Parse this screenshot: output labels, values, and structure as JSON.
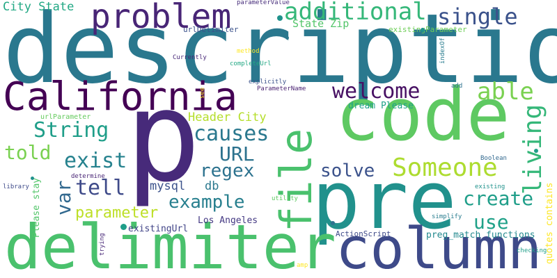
{
  "words": [
    {
      "text": "description",
      "color": "#2a788e"
    },
    {
      "text": "p",
      "color": "#472a7a"
    },
    {
      "text": "code",
      "color": "#5ec962"
    },
    {
      "text": "pre",
      "color": "#21918c"
    },
    {
      "text": "delimiter",
      "color": "#4ac16d"
    },
    {
      "text": "column",
      "color": "#3e4a89"
    },
    {
      "text": "California",
      "color": "#440154"
    },
    {
      "text": "file",
      "color": "#4ac16d"
    },
    {
      "text": "problem",
      "color": "#482576"
    },
    {
      "text": "additional",
      "color": "#35b779"
    },
    {
      "text": "single",
      "color": "#3b528b"
    },
    {
      "text": "Someone",
      "color": "#addc30"
    },
    {
      "text": "welcome",
      "color": "#471063"
    },
    {
      "text": "able",
      "color": "#7ad151"
    },
    {
      "text": "String",
      "color": "#1f9e89"
    },
    {
      "text": "causes",
      "color": "#2a788e"
    },
    {
      "text": "living",
      "color": "#35b779"
    },
    {
      "text": "exist",
      "color": "#26828e"
    },
    {
      "text": "told",
      "color": "#7ad151"
    },
    {
      "text": "tell",
      "color": "#3e4a89"
    },
    {
      "text": "var",
      "color": "#31688e"
    },
    {
      "text": "URL",
      "color": "#2c728e"
    },
    {
      "text": "regex",
      "color": "#2c728e"
    },
    {
      "text": "solve",
      "color": "#3b528b"
    },
    {
      "text": "create",
      "color": "#1f9e89"
    },
    {
      "text": "example",
      "color": "#277f8e"
    },
    {
      "text": "use",
      "color": "#1fa188"
    },
    {
      "text": "parameter",
      "color": "#bddf26"
    },
    {
      "text": "mysql",
      "color": "#3b528b"
    },
    {
      "text": "db",
      "color": "#2a788e"
    },
    {
      "text": "Header City",
      "color": "#b5de2b"
    },
    {
      "text": "City State",
      "color": "#22a884"
    },
    {
      "text": "State Zip",
      "color": "#52c569"
    },
    {
      "text": "dream Please",
      "color": "#1fa188"
    },
    {
      "text": "Los Angeles",
      "color": "#443983"
    },
    {
      "text": "preg_match functions",
      "color": "#23898e"
    },
    {
      "text": "existingUrl",
      "color": "#414487"
    },
    {
      "text": "Please stay",
      "color": "#52c569"
    },
    {
      "text": "quotes contains",
      "color": "#fde725"
    },
    {
      "text": "ActionScript",
      "color": "#3e4a89"
    },
    {
      "text": "urlDelimiter",
      "color": "#3b528b"
    },
    {
      "text": "existingParameter",
      "color": "#6ece58"
    },
    {
      "text": "parameterValue",
      "color": "#472d7b"
    },
    {
      "text": "urlParameter",
      "color": "#65cb5e"
    },
    {
      "text": "Currently",
      "color": "#482878"
    },
    {
      "text": "completeUrl",
      "color": "#22a884"
    },
    {
      "text": "method",
      "color": "#fde725"
    },
    {
      "text": "explicitly",
      "color": "#3b528b"
    },
    {
      "text": "ParameterName",
      "color": "#481f70"
    },
    {
      "text": "see",
      "color": "#fde725"
    },
    {
      "text": "add",
      "color": "#2c728e"
    },
    {
      "text": "indexOf",
      "color": "#287c8e"
    },
    {
      "text": "Boolean",
      "color": "#31688e"
    },
    {
      "text": "determine",
      "color": "#482475"
    },
    {
      "text": "library",
      "color": "#3e4a89"
    },
    {
      "text": "existing",
      "color": "#20928c"
    },
    {
      "text": "utility",
      "color": "#5ec962"
    },
    {
      "text": "simplify",
      "color": "#287c8e"
    },
    {
      "text": "trying",
      "color": "#482878"
    },
    {
      "text": "amp",
      "color": "#fde725"
    },
    {
      "text": "checking",
      "color": "#1f9e89"
    }
  ],
  "dots": [
    "#20928c",
    "#20928c",
    "#2a788e",
    "#20928c",
    "#1f9e89",
    "#2c728e",
    "#1f9e89"
  ]
}
